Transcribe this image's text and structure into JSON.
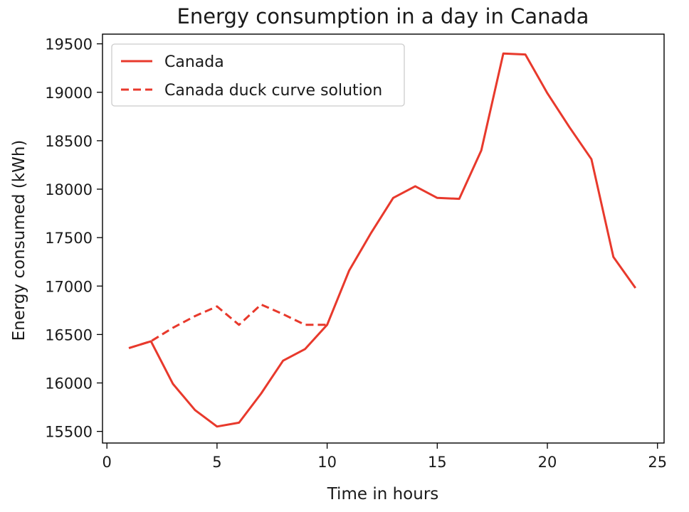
{
  "chart_data": {
    "type": "line",
    "title": "Energy consumption in a day in Canada",
    "xlabel": "Time in hours",
    "ylabel": "Energy consumed (kWh)",
    "xlim": [
      -0.2,
      25.3
    ],
    "ylim": [
      15380,
      19600
    ],
    "xticks": [
      0,
      5,
      10,
      15,
      20,
      25
    ],
    "yticks": [
      15500,
      16000,
      16500,
      17000,
      17500,
      18000,
      18500,
      19000,
      19500
    ],
    "grid": false,
    "legend_position": "top-left",
    "series": [
      {
        "name": "Canada",
        "style": "solid",
        "color": "#e8392c",
        "x": [
          1,
          2,
          3,
          4,
          5,
          6,
          7,
          8,
          9,
          10,
          11,
          12,
          13,
          14,
          15,
          16,
          17,
          18,
          19,
          20,
          21,
          22,
          23,
          24
        ],
        "y": [
          16360,
          16430,
          15990,
          15720,
          15550,
          15590,
          15890,
          16230,
          16350,
          16600,
          17160,
          17550,
          17910,
          18030,
          17910,
          17900,
          18400,
          19400,
          19390,
          18990,
          18640,
          18310,
          17300,
          16980
        ]
      },
      {
        "name": "Canada duck curve solution",
        "style": "dashed",
        "color": "#e8392c",
        "x": [
          1,
          2,
          3,
          4,
          5,
          6,
          7,
          8,
          9,
          10
        ],
        "y": [
          16360,
          16430,
          16570,
          16690,
          16790,
          16600,
          16810,
          16710,
          16600,
          16600
        ]
      }
    ]
  }
}
